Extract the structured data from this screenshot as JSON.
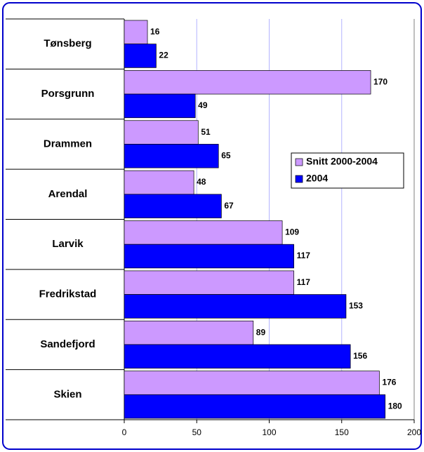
{
  "chart_data": {
    "type": "barh",
    "categories": [
      "Tønsberg",
      "Porsgrunn",
      "Drammen",
      "Arendal",
      "Larvik",
      "Fredrikstad",
      "Sandefjord",
      "Skien"
    ],
    "series": [
      {
        "name": "Snitt 2000-2004",
        "color": "#cc99ff",
        "values": [
          16,
          170,
          51,
          48,
          109,
          117,
          89,
          176
        ]
      },
      {
        "name": "2004",
        "color": "#0000ff",
        "values": [
          22,
          49,
          65,
          67,
          117,
          153,
          156,
          180
        ]
      }
    ],
    "xlim": [
      0,
      200
    ],
    "xticks": [
      0,
      50,
      100,
      150,
      200
    ],
    "grid": true,
    "legend": "right"
  }
}
